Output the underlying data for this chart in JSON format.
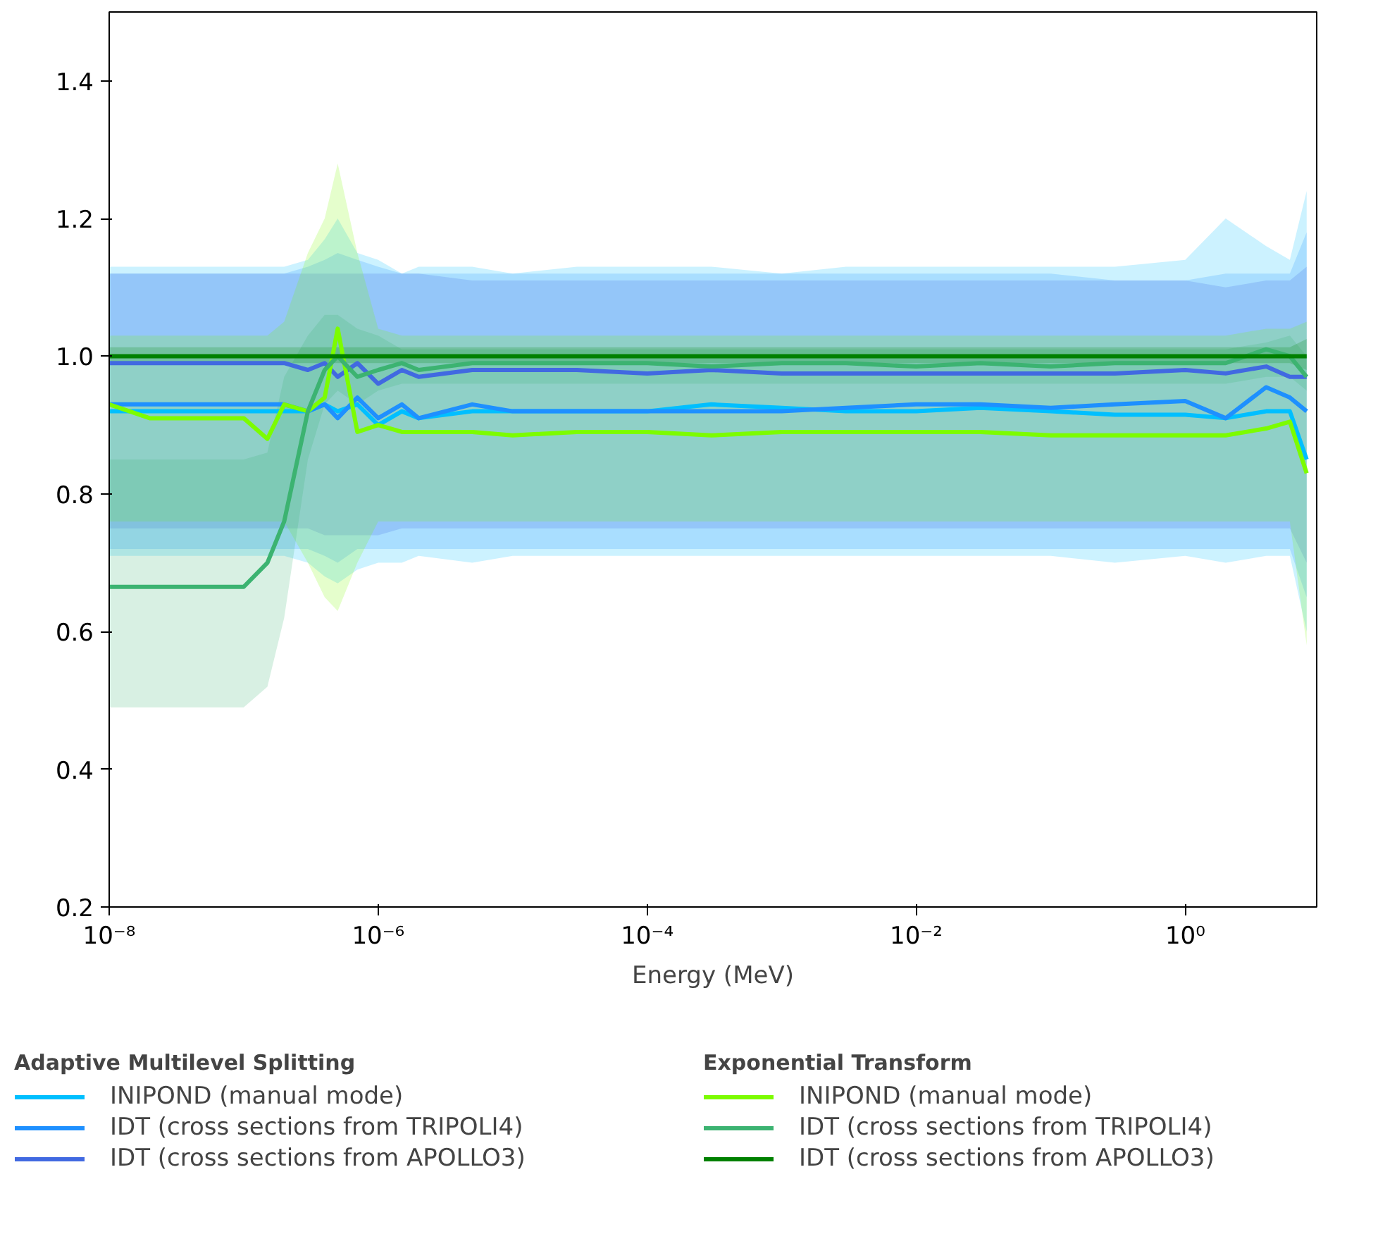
{
  "chart_data": {
    "type": "line",
    "xlabel": "Energy (MeV)",
    "log": "x",
    "grid": false,
    "legend": "bottom",
    "line_style": "solid",
    "marker": "none",
    "xlim": [
      1e-08,
      9.5
    ],
    "ylim": [
      0.2,
      1.5
    ],
    "xticks": [
      {
        "value": 1e-08,
        "label": "10⁻⁸"
      },
      {
        "value": 1e-06,
        "label": "10⁻⁶"
      },
      {
        "value": 0.0001,
        "label": "10⁻⁴"
      },
      {
        "value": 0.01,
        "label": "10⁻²"
      },
      {
        "value": 1,
        "label": "10⁰"
      }
    ],
    "yticks": [
      0.2,
      0.4,
      0.6,
      0.8,
      {
        "value": 1,
        "label": "1.0"
      },
      1.2,
      1.4
    ],
    "annotations": [
      "Adaptive Multilevel Splitting",
      "Exponential Transform"
    ],
    "x": [
      1e-08,
      2e-08,
      5e-08,
      1e-07,
      1.5e-07,
      2e-07,
      3e-07,
      4e-07,
      5e-07,
      7e-07,
      1e-06,
      1.5e-06,
      2e-06,
      5e-06,
      1e-05,
      3e-05,
      0.0001,
      0.0003,
      0.001,
      0.003,
      0.01,
      0.03,
      0.1,
      0.3,
      1,
      2,
      4,
      6,
      8
    ],
    "series": [
      {
        "name": "INIPOND (manual mode)",
        "color": "#00bfff",
        "values": [
          0.92,
          0.92,
          0.92,
          0.92,
          0.92,
          0.92,
          0.92,
          0.93,
          0.92,
          0.93,
          0.9,
          0.92,
          0.91,
          0.92,
          0.92,
          0.92,
          0.92,
          0.93,
          0.925,
          0.92,
          0.92,
          0.925,
          0.92,
          0.915,
          0.915,
          0.91,
          0.92,
          0.92,
          0.85
        ],
        "lower": [
          0.71,
          0.71,
          0.71,
          0.71,
          0.71,
          0.71,
          0.7,
          0.68,
          0.67,
          0.69,
          0.7,
          0.7,
          0.71,
          0.7,
          0.71,
          0.71,
          0.71,
          0.71,
          0.71,
          0.71,
          0.71,
          0.71,
          0.71,
          0.7,
          0.71,
          0.7,
          0.71,
          0.71,
          0.6
        ],
        "upper": [
          1.13,
          1.13,
          1.13,
          1.13,
          1.13,
          1.13,
          1.14,
          1.17,
          1.2,
          1.15,
          1.14,
          1.12,
          1.13,
          1.13,
          1.12,
          1.13,
          1.13,
          1.13,
          1.12,
          1.13,
          1.13,
          1.13,
          1.13,
          1.13,
          1.14,
          1.2,
          1.16,
          1.14,
          1.24
        ]
      },
      {
        "name": "IDT (cross sections from TRIPOLI4)",
        "color": "#1e90ff",
        "values": [
          0.93,
          0.93,
          0.93,
          0.93,
          0.93,
          0.93,
          0.92,
          0.93,
          0.91,
          0.94,
          0.91,
          0.93,
          0.91,
          0.93,
          0.92,
          0.92,
          0.92,
          0.92,
          0.92,
          0.925,
          0.93,
          0.93,
          0.925,
          0.93,
          0.935,
          0.91,
          0.955,
          0.94,
          0.92
        ],
        "lower": [
          0.72,
          0.72,
          0.72,
          0.72,
          0.72,
          0.72,
          0.72,
          0.71,
          0.7,
          0.72,
          0.72,
          0.72,
          0.72,
          0.72,
          0.72,
          0.72,
          0.72,
          0.72,
          0.72,
          0.72,
          0.72,
          0.72,
          0.72,
          0.72,
          0.72,
          0.72,
          0.72,
          0.72,
          0.65
        ],
        "upper": [
          1.12,
          1.12,
          1.12,
          1.12,
          1.12,
          1.12,
          1.13,
          1.14,
          1.15,
          1.14,
          1.13,
          1.12,
          1.12,
          1.12,
          1.12,
          1.12,
          1.12,
          1.12,
          1.12,
          1.12,
          1.12,
          1.12,
          1.12,
          1.11,
          1.11,
          1.12,
          1.12,
          1.12,
          1.18
        ]
      },
      {
        "name": "IDT (cross sections from APOLLO3)",
        "color": "#4169e1",
        "values": [
          0.99,
          0.99,
          0.99,
          0.99,
          0.99,
          0.99,
          0.98,
          0.99,
          0.97,
          0.99,
          0.96,
          0.98,
          0.97,
          0.98,
          0.98,
          0.98,
          0.975,
          0.98,
          0.975,
          0.975,
          0.975,
          0.975,
          0.975,
          0.975,
          0.98,
          0.975,
          0.985,
          0.97,
          0.97
        ],
        "lower": [
          0.75,
          0.75,
          0.75,
          0.75,
          0.75,
          0.75,
          0.75,
          0.74,
          0.74,
          0.74,
          0.74,
          0.75,
          0.75,
          0.75,
          0.75,
          0.75,
          0.75,
          0.75,
          0.75,
          0.75,
          0.75,
          0.75,
          0.75,
          0.75,
          0.75,
          0.75,
          0.75,
          0.75,
          0.7
        ],
        "upper": [
          1.12,
          1.12,
          1.12,
          1.12,
          1.12,
          1.12,
          1.12,
          1.12,
          1.12,
          1.12,
          1.12,
          1.12,
          1.12,
          1.11,
          1.11,
          1.11,
          1.11,
          1.11,
          1.11,
          1.11,
          1.11,
          1.11,
          1.11,
          1.11,
          1.11,
          1.1,
          1.11,
          1.11,
          1.13
        ]
      },
      {
        "name": "INIPOND (manual mode)",
        "color": "#7cfc00",
        "values": [
          0.93,
          0.91,
          0.91,
          0.91,
          0.88,
          0.93,
          0.92,
          0.94,
          1.04,
          0.89,
          0.9,
          0.89,
          0.89,
          0.89,
          0.885,
          0.89,
          0.89,
          0.885,
          0.89,
          0.89,
          0.89,
          0.89,
          0.885,
          0.885,
          0.885,
          0.885,
          0.895,
          0.905,
          0.83
        ],
        "lower": [
          0.76,
          0.76,
          0.76,
          0.76,
          0.76,
          0.76,
          0.7,
          0.65,
          0.63,
          0.7,
          0.76,
          0.76,
          0.76,
          0.76,
          0.76,
          0.76,
          0.76,
          0.76,
          0.76,
          0.76,
          0.76,
          0.76,
          0.76,
          0.76,
          0.76,
          0.76,
          0.76,
          0.76,
          0.58
        ],
        "upper": [
          1.03,
          1.03,
          1.03,
          1.03,
          1.03,
          1.05,
          1.15,
          1.2,
          1.28,
          1.15,
          1.04,
          1.03,
          1.03,
          1.03,
          1.03,
          1.03,
          1.03,
          1.03,
          1.03,
          1.03,
          1.03,
          1.03,
          1.03,
          1.03,
          1.03,
          1.03,
          1.04,
          1.04,
          1.05
        ]
      },
      {
        "name": "IDT (cross sections from TRIPOLI4)",
        "color": "#3cb371",
        "values": [
          0.665,
          0.665,
          0.665,
          0.665,
          0.7,
          0.76,
          0.92,
          0.98,
          1.0,
          0.97,
          0.98,
          0.99,
          0.98,
          0.99,
          0.99,
          0.99,
          0.99,
          0.985,
          0.99,
          0.99,
          0.985,
          0.99,
          0.985,
          0.99,
          0.99,
          0.99,
          1.01,
          1.0,
          0.97
        ],
        "lower": [
          0.49,
          0.49,
          0.49,
          0.49,
          0.52,
          0.62,
          0.85,
          0.93,
          0.95,
          0.93,
          0.95,
          0.96,
          0.96,
          0.96,
          0.96,
          0.96,
          0.96,
          0.96,
          0.96,
          0.96,
          0.96,
          0.96,
          0.96,
          0.96,
          0.96,
          0.96,
          0.97,
          0.97,
          0.95
        ],
        "upper": [
          0.85,
          0.85,
          0.85,
          0.85,
          0.86,
          0.97,
          1.03,
          1.06,
          1.06,
          1.04,
          1.03,
          1.01,
          1.01,
          1.01,
          1.01,
          1.01,
          1.01,
          1.01,
          1.01,
          1.01,
          1.01,
          1.01,
          1.01,
          1.01,
          1.01,
          1.01,
          1.02,
          1.03,
          1.0
        ]
      },
      {
        "name": "IDT (cross sections from APOLLO3)",
        "color": "#008000",
        "values": [
          1.0,
          1.0,
          1.0,
          1.0,
          1.0,
          1.0,
          1.0,
          1.0,
          1.0,
          1.0,
          1.0,
          1.0,
          1.0,
          1.0,
          1.0,
          1.0,
          1.0,
          1.0,
          1.0,
          1.0,
          1.0,
          1.0,
          1.0,
          1.0,
          1.0,
          1.0,
          1.0,
          1.0,
          1.0
        ],
        "lower": [
          0.99,
          0.99,
          0.99,
          0.99,
          0.99,
          0.99,
          0.99,
          0.99,
          0.99,
          0.99,
          0.99,
          0.99,
          0.99,
          0.99,
          0.99,
          0.99,
          0.99,
          0.99,
          0.99,
          0.99,
          0.99,
          0.99,
          0.99,
          0.99,
          0.99,
          0.99,
          0.99,
          0.99,
          0.98
        ],
        "upper": [
          1.013,
          1.013,
          1.013,
          1.013,
          1.013,
          1.013,
          1.013,
          1.013,
          1.013,
          1.013,
          1.013,
          1.013,
          1.013,
          1.013,
          1.013,
          1.013,
          1.013,
          1.013,
          1.013,
          1.013,
          1.013,
          1.013,
          1.013,
          1.013,
          1.013,
          1.013,
          1.013,
          1.013,
          1.025
        ]
      }
    ]
  }
}
